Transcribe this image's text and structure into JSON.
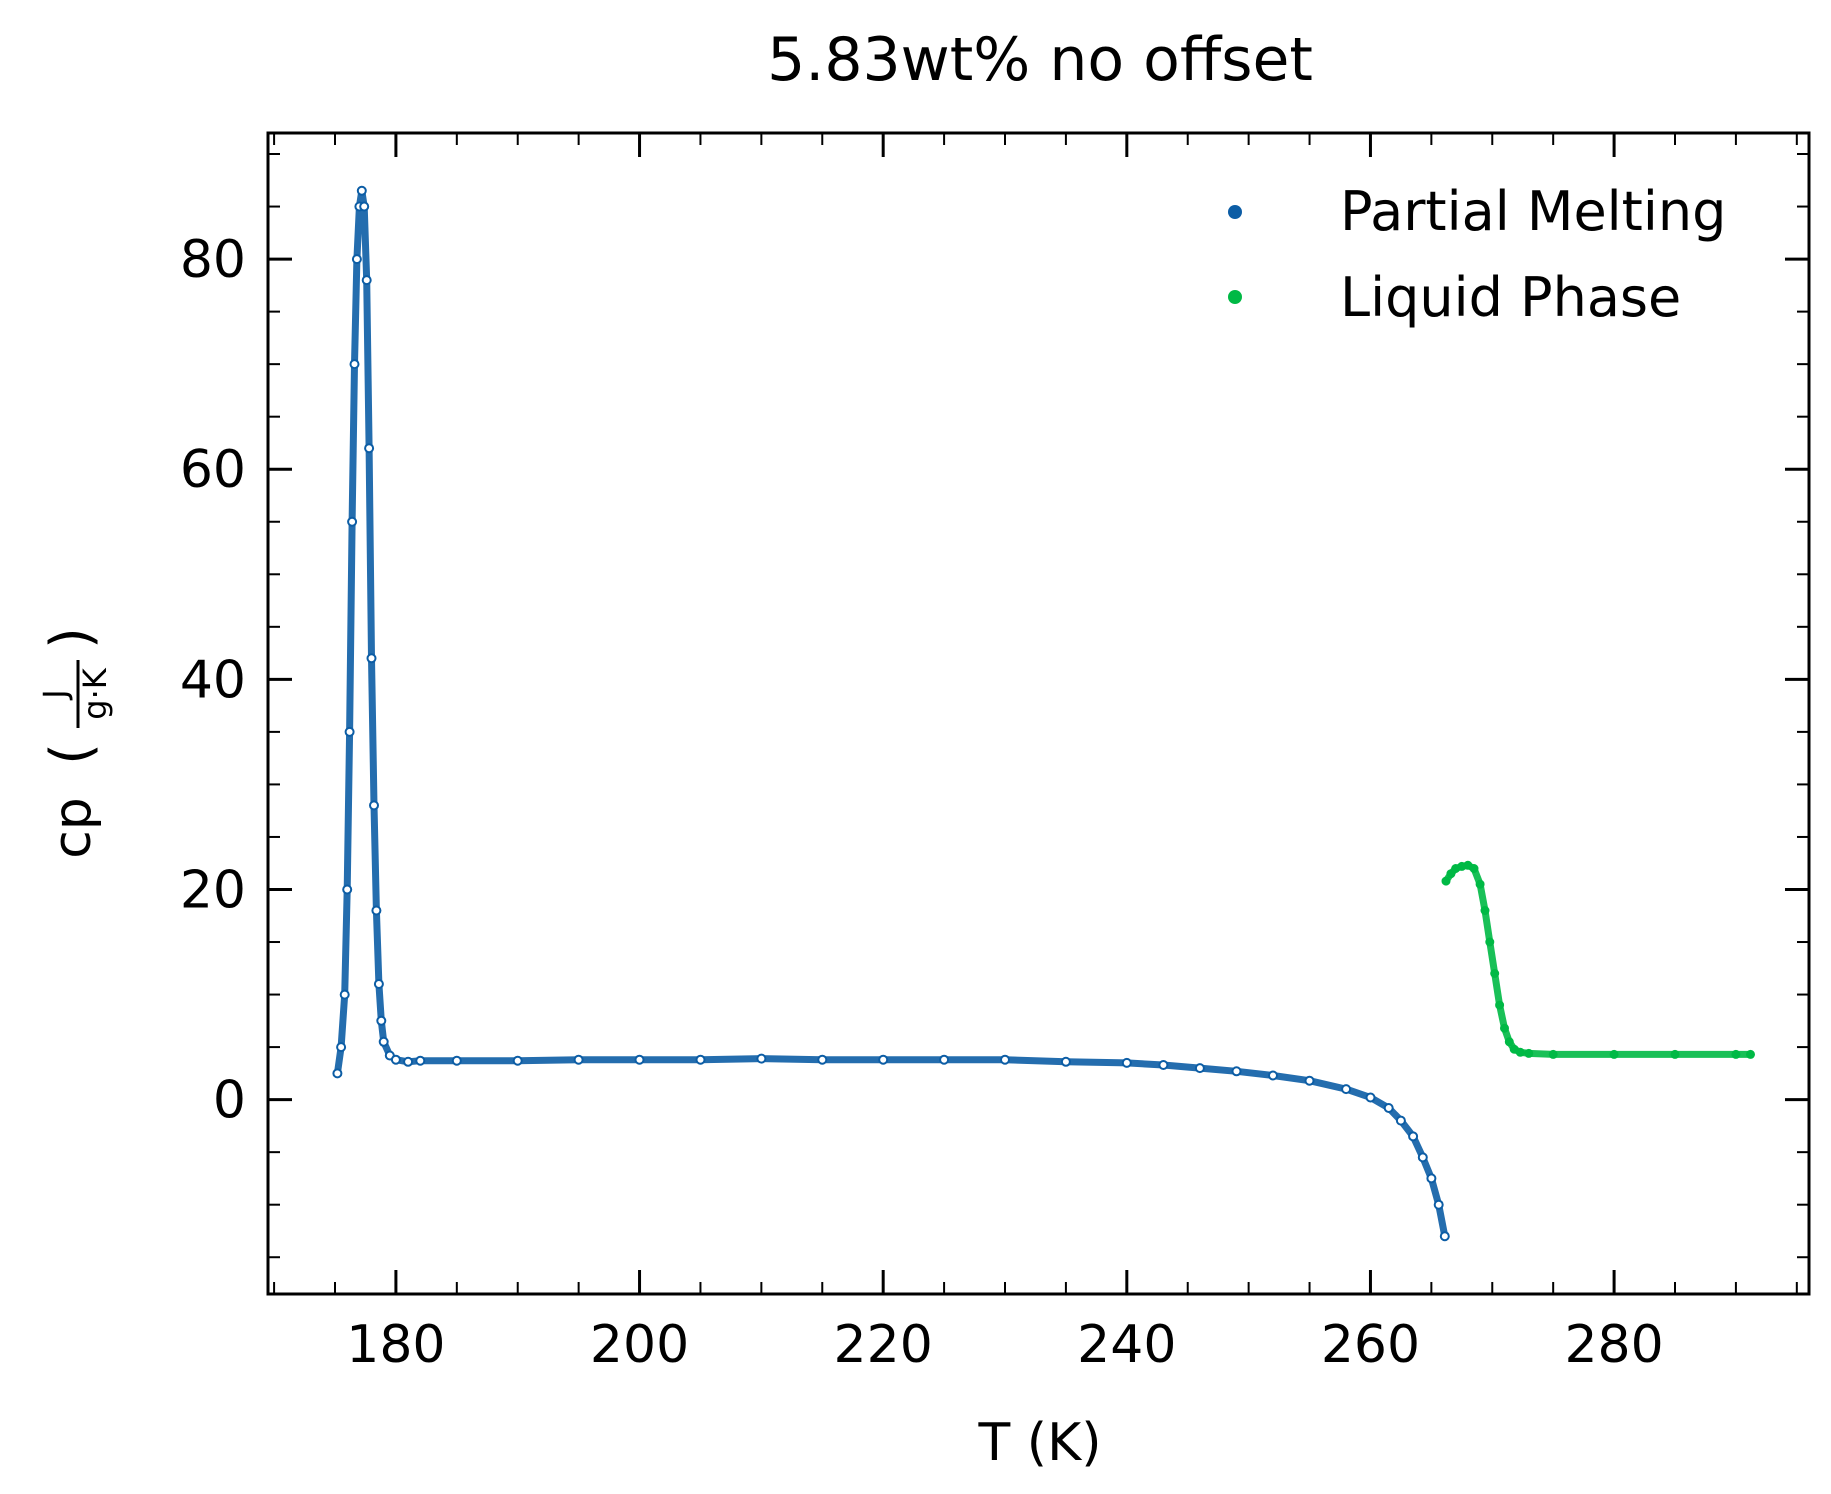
{
  "chart_data": {
    "type": "scatter",
    "title": "5.83wt% no offset",
    "xlabel": "T (K)",
    "ylabel": {
      "prefix": "cp",
      "numerator": "J",
      "denominator": "g·K"
    },
    "xlim": [
      169.5,
      296
    ],
    "ylim": [
      -18.5,
      92
    ],
    "xticks": [
      180,
      200,
      220,
      240,
      260,
      280
    ],
    "yticks": [
      0,
      20,
      40,
      60,
      80
    ],
    "x_minor_step": 5,
    "y_minor_step": 5,
    "tick_direction": "in",
    "grid": false,
    "legend_position": "top-right",
    "series": [
      {
        "name": "Partial Melting",
        "color": "#0c5da5",
        "marker": "open-circle",
        "x": [
          175.2,
          175.5,
          175.8,
          176.0,
          176.2,
          176.4,
          176.6,
          176.8,
          177.0,
          177.2,
          177.4,
          177.6,
          177.8,
          178.0,
          178.2,
          178.4,
          178.6,
          178.8,
          179.0,
          179.5,
          180.0,
          181.0,
          182.0,
          185.0,
          190.0,
          195.0,
          200.0,
          205.0,
          210.0,
          215.0,
          220.0,
          225.0,
          230.0,
          235.0,
          240.0,
          243.0,
          246.0,
          249.0,
          252.0,
          255.0,
          258.0,
          260.0,
          261.5,
          262.5,
          263.5,
          264.3,
          265.0,
          265.6,
          266.1
        ],
        "y": [
          2.5,
          5.0,
          10.0,
          20.0,
          35.0,
          55.0,
          70.0,
          80.0,
          85.0,
          86.5,
          85.0,
          78.0,
          62.0,
          42.0,
          28.0,
          18.0,
          11.0,
          7.5,
          5.5,
          4.2,
          3.8,
          3.6,
          3.7,
          3.7,
          3.7,
          3.8,
          3.8,
          3.8,
          3.9,
          3.8,
          3.8,
          3.8,
          3.8,
          3.6,
          3.5,
          3.3,
          3.0,
          2.7,
          2.3,
          1.8,
          1.0,
          0.2,
          -0.8,
          -2.0,
          -3.5,
          -5.5,
          -7.5,
          -10.0,
          -13.0
        ]
      },
      {
        "name": "Liquid Phase",
        "color": "#00b945",
        "marker": "filled-circle",
        "x": [
          266.2,
          266.6,
          267.0,
          267.5,
          268.0,
          268.5,
          269.0,
          269.4,
          269.8,
          270.2,
          270.6,
          271.0,
          271.4,
          271.8,
          272.3,
          273.0,
          275.0,
          280.0,
          285.0,
          290.0,
          291.2
        ],
        "y": [
          20.8,
          21.5,
          22.0,
          22.2,
          22.3,
          22.0,
          20.5,
          18.0,
          15.0,
          12.0,
          9.0,
          6.8,
          5.5,
          4.8,
          4.5,
          4.4,
          4.3,
          4.3,
          4.3,
          4.3,
          4.3
        ]
      }
    ]
  }
}
